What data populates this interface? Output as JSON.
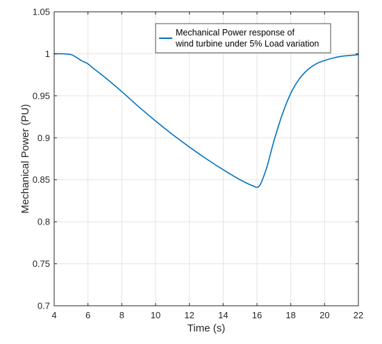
{
  "chart_data": {
    "type": "line",
    "title": "",
    "xlabel": "Time (s)",
    "ylabel": "Mechanical Power (PU)",
    "xlim": [
      4,
      22
    ],
    "ylim": [
      0.7,
      1.05
    ],
    "xticks": [
      4,
      6,
      8,
      10,
      12,
      14,
      16,
      18,
      20,
      22
    ],
    "yticks": [
      0.7,
      0.75,
      0.8,
      0.85,
      0.9,
      0.95,
      1,
      1.05
    ],
    "grid": true,
    "legend_position": "top-right",
    "series": [
      {
        "name_lines": [
          "Mechanical Power response of",
          "wind turbine under 5% Load variation"
        ],
        "color": "#0072bd",
        "x": [
          4.0,
          4.5,
          5.0,
          5.3,
          5.6,
          6.0,
          6.3,
          7.0,
          8.0,
          9.0,
          10.0,
          11.0,
          12.0,
          13.0,
          14.0,
          15.0,
          15.5,
          15.85,
          16.0,
          16.15,
          16.3,
          16.6,
          17.0,
          17.5,
          18.0,
          18.5,
          19.0,
          19.5,
          20.0,
          20.5,
          21.0,
          21.5,
          22.0
        ],
        "y": [
          1.0,
          1.0,
          0.999,
          0.996,
          0.992,
          0.988,
          0.983,
          0.972,
          0.955,
          0.937,
          0.92,
          0.904,
          0.889,
          0.875,
          0.862,
          0.85,
          0.845,
          0.842,
          0.841,
          0.843,
          0.849,
          0.866,
          0.896,
          0.928,
          0.953,
          0.97,
          0.981,
          0.988,
          0.992,
          0.995,
          0.997,
          0.998,
          0.999
        ]
      }
    ]
  }
}
